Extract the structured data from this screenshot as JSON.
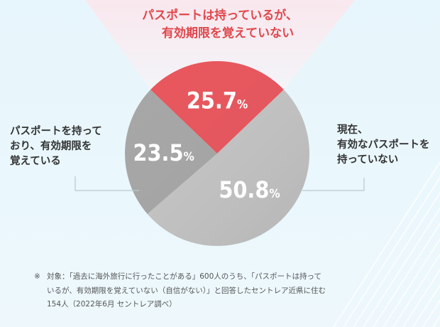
{
  "chart_data": {
    "type": "pie",
    "slices": [
      {
        "name": "パスポートは持っているが、有効期限を覚えていない",
        "value": 25.7,
        "color": "#e8555c"
      },
      {
        "name": "現在、有効なパスポートを持っていない",
        "value": 50.8,
        "color": "#c4c4c4"
      },
      {
        "name": "パスポートを持っており、有効期限を覚えている",
        "value": 23.5,
        "color": "#a6a6a6"
      }
    ],
    "data_labels": [
      "25.7%",
      "50.8%",
      "23.5%"
    ],
    "callout_top": {
      "line1": "パスポートは持っているが、",
      "line2": "有効期限を覚えていない"
    },
    "label_left": {
      "line1": "パスポートを持って",
      "line2": "おり、有効期限を",
      "line3": "覚えている"
    },
    "label_right": {
      "line1": "現在、",
      "line2": "有効なパスポートを",
      "line3": "持っていない"
    },
    "unit": "%"
  },
  "footnote": {
    "mark": "※",
    "line1": "対象：「過去に海外旅行に行ったことがある」600人のうち、「パスポートは持って",
    "line2": "いるが、有効期限を覚えていない（自信がない）」と回答したセントレア近県に住む",
    "line3": "154人（2022年6月 セントレア調べ）"
  }
}
